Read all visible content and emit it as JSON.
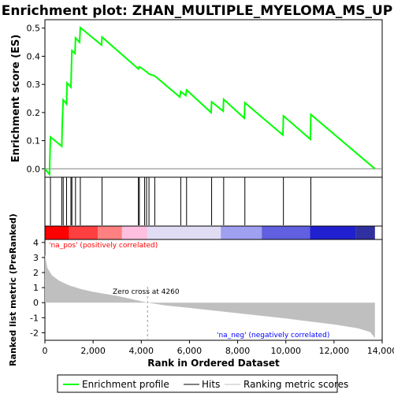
{
  "title": "Enrichment plot: ZHAN_MULTIPLE_MYELOMA_MS_UP",
  "legend": {
    "items": [
      {
        "label": "Enrichment profile",
        "color": "#00ff00"
      },
      {
        "label": "Hits",
        "color": "#000000"
      },
      {
        "label": "Ranking metric scores",
        "color": "#bfbfbf"
      }
    ]
  },
  "chart_data": [
    {
      "type": "line",
      "name": "enrichment-profile",
      "ylabel": "Enrichment score (ES)",
      "xlim": [
        0,
        14000
      ],
      "ylim": [
        -0.03,
        0.53
      ],
      "yticks": [
        "0.0",
        "0.1",
        "0.2",
        "0.3",
        "0.4",
        "0.5"
      ],
      "color": "#00ff00",
      "points": [
        [
          0,
          0.0
        ],
        [
          190,
          -0.02
        ],
        [
          230,
          0.113
        ],
        [
          700,
          0.08
        ],
        [
          720,
          0.16
        ],
        [
          760,
          0.245
        ],
        [
          900,
          0.23
        ],
        [
          920,
          0.305
        ],
        [
          1080,
          0.29
        ],
        [
          1100,
          0.355
        ],
        [
          1120,
          0.42
        ],
        [
          1250,
          0.41
        ],
        [
          1270,
          0.465
        ],
        [
          1440,
          0.45
        ],
        [
          1470,
          0.502
        ],
        [
          2350,
          0.44
        ],
        [
          2370,
          0.468
        ],
        [
          3880,
          0.355
        ],
        [
          3920,
          0.363
        ],
        [
          4140,
          0.35
        ],
        [
          4220,
          0.345
        ],
        [
          4320,
          0.337
        ],
        [
          4560,
          0.33
        ],
        [
          5600,
          0.255
        ],
        [
          5640,
          0.275
        ],
        [
          5850,
          0.26
        ],
        [
          5880,
          0.28
        ],
        [
          6900,
          0.2
        ],
        [
          6920,
          0.238
        ],
        [
          7400,
          0.205
        ],
        [
          7420,
          0.247
        ],
        [
          8280,
          0.18
        ],
        [
          8300,
          0.235
        ],
        [
          9880,
          0.12
        ],
        [
          9900,
          0.188
        ],
        [
          11020,
          0.105
        ],
        [
          11040,
          0.193
        ],
        [
          13700,
          0.0
        ]
      ]
    },
    {
      "type": "hits",
      "name": "hits",
      "xlim": [
        0,
        14000
      ],
      "positions": [
        230,
        700,
        760,
        900,
        1080,
        1120,
        1270,
        1470,
        2370,
        3880,
        3920,
        4140,
        4220,
        4320,
        4560,
        5640,
        5880,
        6920,
        7420,
        8300,
        9900,
        11040
      ]
    },
    {
      "type": "heatmap",
      "name": "ranking-color-bar",
      "segments": [
        {
          "x0": 0,
          "x1": 1000,
          "color": "#ff0000"
        },
        {
          "x0": 1000,
          "x1": 2200,
          "color": "#ff4040"
        },
        {
          "x0": 2200,
          "x1": 3200,
          "color": "#ff8080"
        },
        {
          "x0": 3200,
          "x1": 4260,
          "color": "#ffc0e0"
        },
        {
          "x0": 4260,
          "x1": 7300,
          "color": "#e0dcf4"
        },
        {
          "x0": 7300,
          "x1": 9000,
          "color": "#a0a0f0"
        },
        {
          "x0": 9000,
          "x1": 11000,
          "color": "#6060e0"
        },
        {
          "x0": 11000,
          "x1": 12900,
          "color": "#2020d0"
        },
        {
          "x0": 12900,
          "x1": 13700,
          "color": "#3030a0"
        }
      ]
    },
    {
      "type": "area",
      "name": "ranked-list-metric",
      "ylabel": "Ranked list metric (PreRanked)",
      "xlabel": "Rank in Ordered Dataset",
      "xlim": [
        0,
        14000
      ],
      "ylim": [
        -2.5,
        4.2
      ],
      "xticks": [
        "0",
        "2,000",
        "4,000",
        "6,000",
        "8,000",
        "10,000",
        "12,000",
        "14,000"
      ],
      "yticks": [
        "-2",
        "-1",
        "0",
        "1",
        "2",
        "3",
        "4"
      ],
      "color": "#bfbfbf",
      "points": [
        [
          0,
          3.2
        ],
        [
          100,
          2.3
        ],
        [
          300,
          1.8
        ],
        [
          600,
          1.45
        ],
        [
          1000,
          1.15
        ],
        [
          1500,
          0.9
        ],
        [
          2000,
          0.72
        ],
        [
          3000,
          0.45
        ],
        [
          4260,
          0.0
        ],
        [
          5000,
          -0.18
        ],
        [
          6000,
          -0.35
        ],
        [
          8000,
          -0.7
        ],
        [
          10000,
          -1.05
        ],
        [
          12000,
          -1.45
        ],
        [
          13000,
          -1.7
        ],
        [
          13500,
          -1.95
        ],
        [
          13700,
          -2.35
        ]
      ],
      "zero_cross_x": 4260,
      "annotations": {
        "zero_cross": "Zero cross at 4260",
        "pos": "'na_pos' (positively correlated)",
        "neg": "'na_neg' (negatively correlated)"
      }
    }
  ]
}
